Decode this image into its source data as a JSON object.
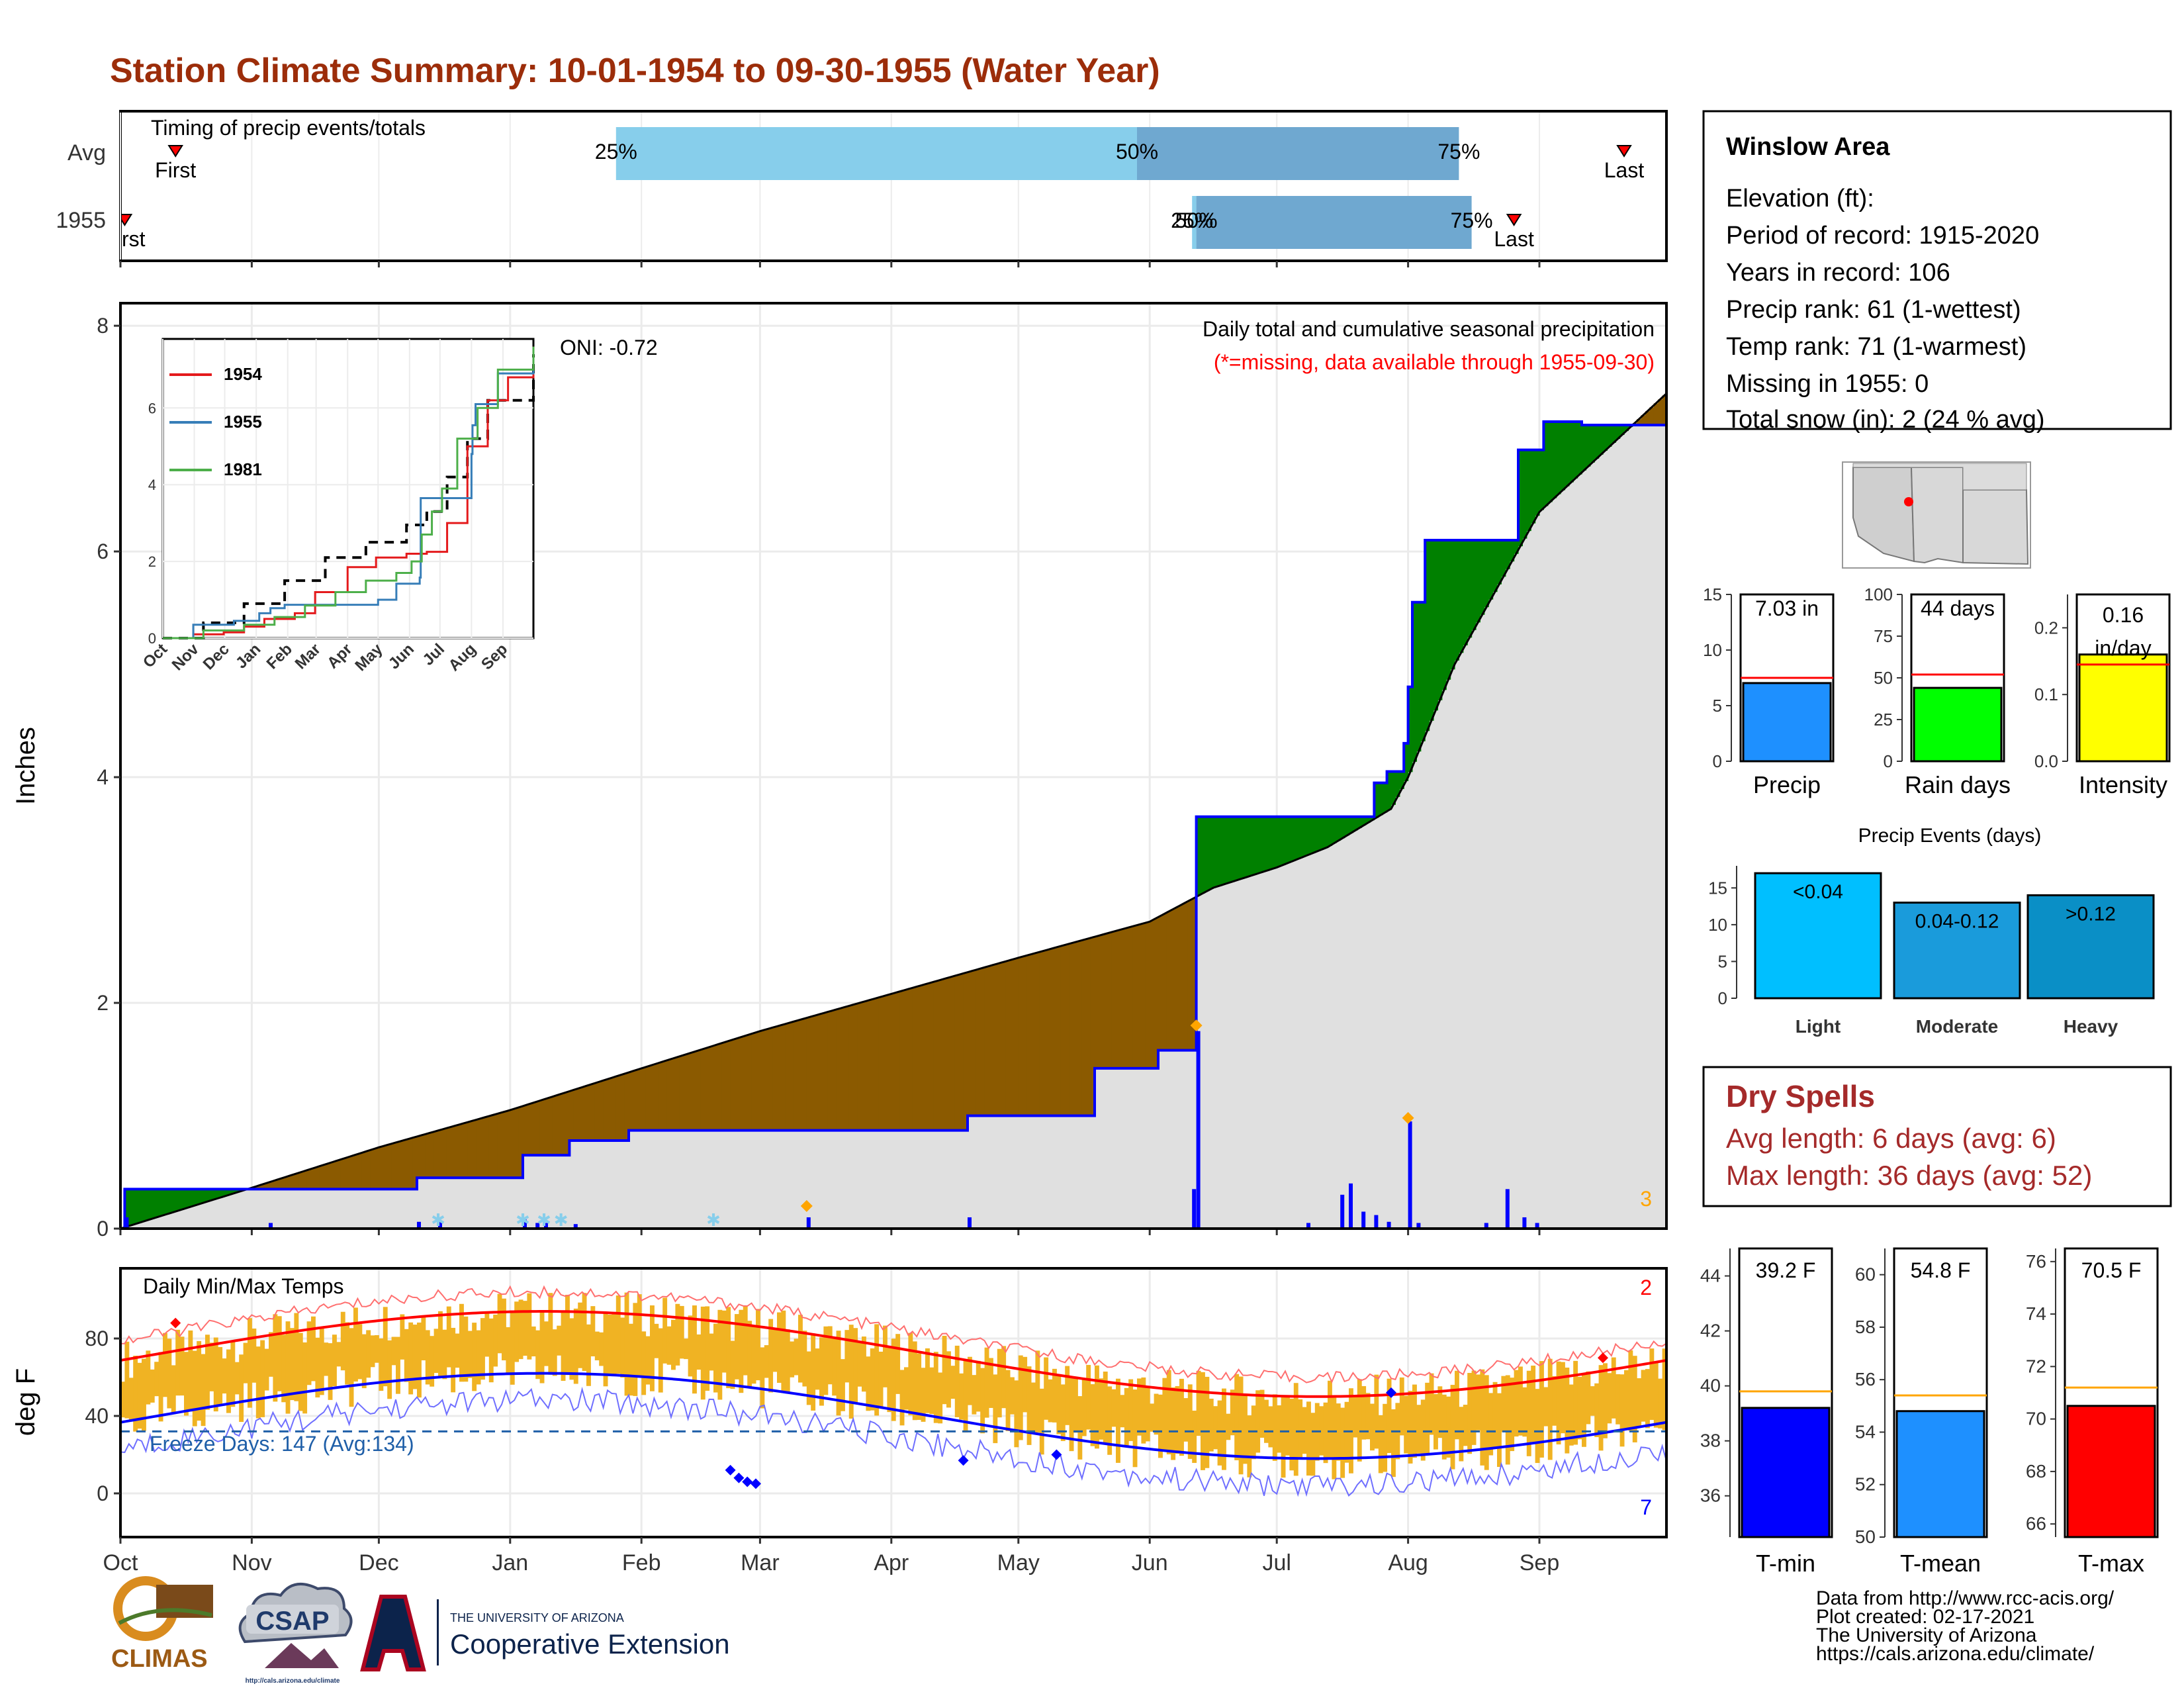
{
  "title": "Station Climate Summary: 10-01-1954 to 09-30-1955 (Water Year)",
  "months": [
    "Oct",
    "Nov",
    "Dec",
    "Jan",
    "Feb",
    "Mar",
    "Apr",
    "May",
    "Jun",
    "Jul",
    "Aug",
    "Sep"
  ],
  "month_starts_doy": [
    0,
    31,
    61,
    92,
    123,
    151,
    182,
    212,
    243,
    273,
    304,
    335
  ],
  "timing_panel": {
    "label": "Timing of precip events/totals",
    "rows": [
      "Avg",
      "1955"
    ],
    "avg": {
      "first_doy": 13,
      "last_doy": 355,
      "first_label": "First",
      "last_label": "Last",
      "p25_doy": 117,
      "p50_doy": 240,
      "p75_doy": 316
    },
    "y1955": {
      "first_doy": 1,
      "last_doy": 329,
      "first_label": "First",
      "last_label": "Last",
      "p25_doy": 253,
      "p50_doy": 254,
      "p75_doy": 319
    },
    "pct_labels": [
      "25%",
      "50%",
      "75%"
    ]
  },
  "precip_panel": {
    "ylabel": "Inches",
    "yticks": [
      0,
      2,
      4,
      6,
      8
    ],
    "ymax": 8.2,
    "subtitle": "Daily total and cumulative seasonal precipitation",
    "note": "(*=missing, data available through 1955-09-30)",
    "oni": "ONI: -0.72",
    "corner_count": "3",
    "avg_cum_points": [
      [
        0,
        0
      ],
      [
        30,
        0.35
      ],
      [
        61,
        0.72
      ],
      [
        92,
        1.05
      ],
      [
        123,
        1.42
      ],
      [
        151,
        1.75
      ],
      [
        182,
        2.08
      ],
      [
        212,
        2.4
      ],
      [
        243,
        2.72
      ],
      [
        258,
        3.02
      ],
      [
        273,
        3.2
      ],
      [
        285,
        3.38
      ],
      [
        300,
        3.72
      ],
      [
        304,
        4.0
      ],
      [
        315,
        5.0
      ],
      [
        335,
        6.35
      ],
      [
        365,
        7.4
      ]
    ],
    "obs_cum_points": [
      [
        0,
        0
      ],
      [
        1,
        0.35
      ],
      [
        70,
        0.45
      ],
      [
        78,
        0.45
      ],
      [
        95,
        0.65
      ],
      [
        106,
        0.78
      ],
      [
        120,
        0.87
      ],
      [
        190,
        0.87
      ],
      [
        200,
        1.0
      ],
      [
        212,
        1.0
      ],
      [
        230,
        1.42
      ],
      [
        245,
        1.58
      ],
      [
        253,
        1.58
      ],
      [
        254,
        3.65
      ],
      [
        290,
        3.65
      ],
      [
        296,
        3.95
      ],
      [
        299,
        4.05
      ],
      [
        303,
        4.3
      ],
      [
        304,
        4.8
      ],
      [
        305,
        5.55
      ],
      [
        308,
        6.1
      ],
      [
        322,
        6.1
      ],
      [
        330,
        6.9
      ],
      [
        336,
        7.15
      ],
      [
        345,
        7.12
      ],
      [
        365,
        7.12
      ]
    ],
    "daily_bars": [
      [
        1,
        0.1
      ],
      [
        35,
        0.05
      ],
      [
        70,
        0.06
      ],
      [
        75,
        0.06
      ],
      [
        95,
        0.08
      ],
      [
        98,
        0.05
      ],
      [
        100,
        0.05
      ],
      [
        107,
        0.04
      ],
      [
        162,
        0.1
      ],
      [
        200,
        0.1
      ],
      [
        253,
        0.35
      ],
      [
        254,
        1.75
      ],
      [
        280,
        0.05
      ],
      [
        288,
        0.3
      ],
      [
        290,
        0.4
      ],
      [
        293,
        0.15
      ],
      [
        296,
        0.12
      ],
      [
        299,
        0.06
      ],
      [
        304,
        0.95
      ],
      [
        306,
        0.05
      ],
      [
        322,
        0.05
      ],
      [
        327,
        0.35
      ],
      [
        331,
        0.1
      ],
      [
        334,
        0.05
      ]
    ],
    "snow_marks": [
      75,
      95,
      100,
      104,
      140
    ],
    "orange_marks": [
      [
        162,
        0.2
      ],
      [
        254,
        1.8
      ],
      [
        304,
        0.98
      ]
    ]
  },
  "inset": {
    "legend": [
      "1954",
      "1955",
      "1981"
    ],
    "colors": [
      "#e41a1c",
      "#377eb8",
      "#4daf4a"
    ],
    "yticks": [
      0,
      2,
      4,
      6
    ],
    "xlabels": [
      "Oct",
      "Nov",
      "Dec",
      "Jan",
      "Feb",
      "Mar",
      "Apr",
      "May",
      "Jun",
      "Jul",
      "Aug",
      "Sep"
    ],
    "series": {
      "1954": [
        [
          0,
          0
        ],
        [
          30,
          0.1
        ],
        [
          60,
          0.15
        ],
        [
          80,
          0.3
        ],
        [
          100,
          0.5
        ],
        [
          130,
          0.65
        ],
        [
          150,
          1.2
        ],
        [
          182,
          1.85
        ],
        [
          210,
          2.1
        ],
        [
          240,
          2.2
        ],
        [
          260,
          2.25
        ],
        [
          280,
          3.0
        ],
        [
          300,
          5.0
        ],
        [
          320,
          6.2
        ],
        [
          340,
          6.8
        ],
        [
          365,
          7.6
        ]
      ],
      "1955": [
        [
          0,
          0
        ],
        [
          30,
          0.35
        ],
        [
          70,
          0.45
        ],
        [
          95,
          0.65
        ],
        [
          106,
          0.78
        ],
        [
          120,
          0.87
        ],
        [
          190,
          0.87
        ],
        [
          212,
          1.0
        ],
        [
          230,
          1.42
        ],
        [
          253,
          1.58
        ],
        [
          254,
          3.65
        ],
        [
          290,
          3.65
        ],
        [
          304,
          4.8
        ],
        [
          305,
          5.55
        ],
        [
          308,
          6.1
        ],
        [
          330,
          6.9
        ],
        [
          365,
          7.1
        ]
      ],
      "1981": [
        [
          0,
          0
        ],
        [
          40,
          0.2
        ],
        [
          80,
          0.35
        ],
        [
          110,
          0.55
        ],
        [
          140,
          0.85
        ],
        [
          170,
          1.2
        ],
        [
          200,
          1.5
        ],
        [
          230,
          1.7
        ],
        [
          245,
          2.0
        ],
        [
          255,
          2.7
        ],
        [
          265,
          3.3
        ],
        [
          275,
          3.9
        ],
        [
          290,
          5.2
        ],
        [
          310,
          6.0
        ],
        [
          330,
          7.0
        ],
        [
          365,
          7.6
        ]
      ],
      "avg": [
        [
          0,
          0
        ],
        [
          40,
          0.4
        ],
        [
          80,
          0.9
        ],
        [
          120,
          1.5
        ],
        [
          160,
          2.1
        ],
        [
          200,
          2.5
        ],
        [
          240,
          2.95
        ],
        [
          260,
          3.3
        ],
        [
          280,
          4.2
        ],
        [
          300,
          5.2
        ],
        [
          320,
          6.2
        ],
        [
          365,
          7.4
        ]
      ]
    }
  },
  "station_box": {
    "name": "Winslow Area",
    "lines": [
      "Elevation (ft):",
      "Period of record: 1915-2020",
      "Years in record: 106",
      "Precip rank: 61 (1-wettest)",
      "Temp rank: 71 (1-warmest)",
      "Missing in 1955: 0",
      "Total snow (in): 2 (24 % avg)"
    ]
  },
  "summary_bars": [
    {
      "label": "Precip",
      "value_label": "7.03 in",
      "value": 7.03,
      "avg": 7.5,
      "ymin": 0,
      "ymax": 15,
      "ticks": [
        0,
        5,
        10,
        15
      ],
      "color": "#1e90ff"
    },
    {
      "label": "Rain days",
      "value_label": "44 days",
      "value": 44,
      "avg": 52,
      "ymin": 0,
      "ymax": 100,
      "ticks": [
        0,
        25,
        50,
        75,
        100
      ],
      "color": "#00ff00"
    },
    {
      "label": "Intensity",
      "value_label": "0.16 in/day",
      "value": 0.16,
      "avg": 0.145,
      "ymin": 0,
      "ymax": 0.25,
      "ticks": [
        0.0,
        0.1,
        0.2
      ],
      "color": "#ffff00"
    }
  ],
  "precip_events": {
    "title": "Precip Events (days)",
    "ticks": [
      0,
      5,
      10,
      15
    ],
    "ymax": 18,
    "bars": [
      {
        "label": "Light",
        "range": "<0.04",
        "value": 17,
        "color": "#00bfff"
      },
      {
        "label": "Moderate",
        "range": "0.04-0.12",
        "value": 13,
        "color": "#1a9bdb"
      },
      {
        "label": "Heavy",
        "range": ">0.12",
        "value": 14,
        "color": "#0a8fc6"
      }
    ]
  },
  "dry_spells": {
    "title": "Dry Spells",
    "avg_length": "Avg length: 6 days (avg: 6)",
    "max_length": "Max length: 36 days (avg: 52)"
  },
  "temp_panel": {
    "ylabel": "deg F",
    "label": "Daily Min/Max Temps",
    "yticks": [
      0,
      40,
      80
    ],
    "freeze_text": "Freeze Days: 147 (Avg:134)",
    "count_red": "2",
    "count_blue": "7",
    "freeze_line": 32
  },
  "temp_bars": [
    {
      "label": "T-min",
      "value_label": "39.2 F",
      "value": 39.2,
      "avg": 39.8,
      "ymin": 34.5,
      "ymax": 45,
      "ticks": [
        36,
        38,
        40,
        42,
        44
      ],
      "color": "#0000ff"
    },
    {
      "label": "T-mean",
      "value_label": "54.8 F",
      "value": 54.8,
      "avg": 55.4,
      "ymin": 50,
      "ymax": 61,
      "ticks": [
        50,
        52,
        54,
        56,
        58,
        60
      ],
      "color": "#1e90ff"
    },
    {
      "label": "T-max",
      "value_label": "70.5 F",
      "value": 70.5,
      "avg": 71.2,
      "ymin": 65.5,
      "ymax": 76.5,
      "ticks": [
        66,
        68,
        70,
        72,
        74,
        76
      ],
      "color": "#ff0000"
    }
  ],
  "logos": {
    "climas": "CLIMAS",
    "csap": "CSAP",
    "csap_url": "http://cals.arizona.edu/climate",
    "ua_small": "THE UNIVERSITY OF ARIZONA",
    "ua_big": "Cooperative Extension"
  },
  "footer": [
    "Data from http://www.rcc-acis.org/",
    "Plot created: 02-17-2021",
    "The University of Arizona",
    "https://cals.arizona.edu/climate/"
  ]
}
